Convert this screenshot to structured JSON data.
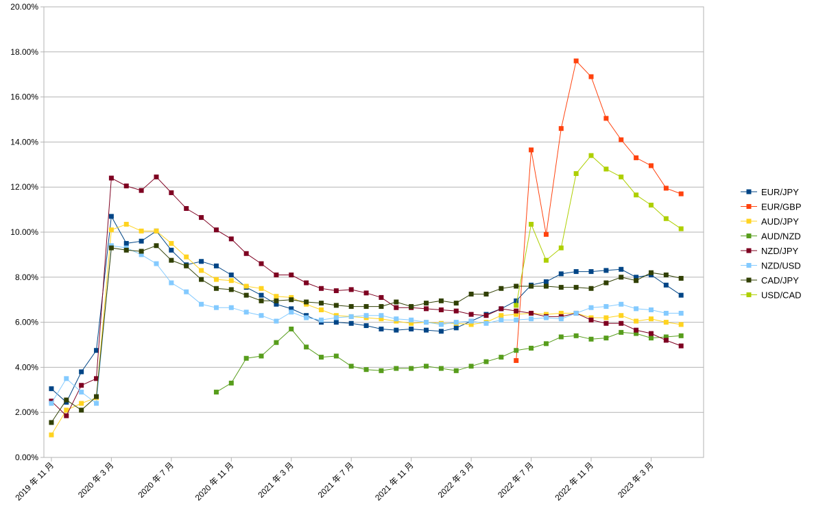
{
  "chart_data": {
    "type": "line",
    "title": "",
    "xlabel": "",
    "ylabel": "",
    "ylim": [
      0,
      20
    ],
    "y_ticks": [
      "0.00%",
      "2.00%",
      "4.00%",
      "6.00%",
      "8.00%",
      "10.00%",
      "12.00%",
      "14.00%",
      "16.00%",
      "18.00%",
      "20.00%"
    ],
    "x_ticks": [
      {
        "index": 0,
        "label": "2019 年 11 月"
      },
      {
        "index": 4,
        "label": "2020 年 3 月"
      },
      {
        "index": 8,
        "label": "2020 年 7 月"
      },
      {
        "index": 12,
        "label": "2020 年 11 月"
      },
      {
        "index": 16,
        "label": "2021 年 3 月"
      },
      {
        "index": 20,
        "label": "2021 年 7 月"
      },
      {
        "index": 24,
        "label": "2021 年 11 月"
      },
      {
        "index": 28,
        "label": "2022 年 3 月"
      },
      {
        "index": 32,
        "label": "2022 年 7 月"
      },
      {
        "index": 36,
        "label": "2022 年 11 月"
      },
      {
        "index": 40,
        "label": "2023 年 3 月"
      }
    ],
    "grid": true,
    "legend_position": "right",
    "x": [
      "2019-11",
      "2019-12",
      "2020-01",
      "2020-02",
      "2020-03",
      "2020-04",
      "2020-05",
      "2020-06",
      "2020-07",
      "2020-08",
      "2020-09",
      "2020-10",
      "2020-11",
      "2020-12",
      "2021-01",
      "2021-02",
      "2021-03",
      "2021-04",
      "2021-05",
      "2021-06",
      "2021-07",
      "2021-08",
      "2021-09",
      "2021-10",
      "2021-11",
      "2021-12",
      "2022-01",
      "2022-02",
      "2022-03",
      "2022-04",
      "2022-05",
      "2022-06",
      "2022-07",
      "2022-08",
      "2022-09",
      "2022-10",
      "2022-11",
      "2022-12",
      "2023-01",
      "2023-02",
      "2023-03",
      "2023-04",
      "2023-05",
      "2023-06"
    ],
    "series": [
      {
        "name": "EUR/JPY",
        "color": "#004586",
        "values": [
          3.05,
          2.45,
          3.8,
          4.75,
          10.7,
          9.5,
          9.6,
          10.05,
          9.2,
          8.55,
          8.7,
          8.5,
          8.1,
          7.55,
          7.2,
          6.8,
          6.6,
          6.3,
          6.0,
          6.0,
          5.95,
          5.85,
          5.7,
          5.65,
          5.7,
          5.65,
          5.6,
          5.75,
          6.05,
          6.35,
          6.6,
          6.95,
          7.65,
          7.8,
          8.15,
          8.25,
          8.25,
          8.3,
          8.35,
          8.0,
          8.1,
          7.65,
          7.2,
          null
        ]
      },
      {
        "name": "EUR/GBP",
        "color": "#ff420e",
        "values": [
          null,
          null,
          null,
          null,
          null,
          null,
          null,
          null,
          null,
          null,
          null,
          null,
          null,
          null,
          null,
          null,
          null,
          null,
          null,
          null,
          null,
          null,
          null,
          null,
          null,
          null,
          null,
          null,
          null,
          null,
          null,
          4.3,
          13.65,
          9.9,
          14.6,
          17.6,
          16.9,
          15.05,
          14.1,
          13.3,
          12.95,
          11.95,
          11.7,
          null
        ]
      },
      {
        "name": "AUD/JPY",
        "color": "#ffd320",
        "values": [
          1.0,
          2.1,
          2.4,
          2.65,
          10.1,
          10.35,
          10.05,
          10.05,
          9.5,
          8.9,
          8.3,
          7.9,
          7.85,
          7.6,
          7.5,
          7.15,
          7.1,
          6.8,
          6.55,
          6.3,
          6.25,
          6.2,
          6.15,
          6.05,
          5.95,
          6.0,
          5.95,
          5.95,
          5.9,
          6.0,
          6.3,
          6.35,
          6.4,
          6.35,
          6.4,
          6.4,
          6.2,
          6.2,
          6.3,
          6.05,
          6.15,
          6.0,
          5.9,
          null
        ]
      },
      {
        "name": "AUD/NZD",
        "color": "#579d1c",
        "values": [
          null,
          null,
          null,
          null,
          null,
          null,
          null,
          null,
          null,
          null,
          null,
          2.9,
          3.3,
          4.4,
          4.5,
          5.1,
          5.7,
          4.9,
          4.45,
          4.5,
          4.05,
          3.9,
          3.85,
          3.95,
          3.95,
          4.05,
          3.95,
          3.85,
          4.05,
          4.25,
          4.45,
          4.75,
          4.85,
          5.05,
          5.35,
          5.4,
          5.25,
          5.3,
          5.55,
          5.5,
          5.3,
          5.35,
          5.4,
          null
        ]
      },
      {
        "name": "NZD/JPY",
        "color": "#7e0021",
        "values": [
          2.5,
          1.85,
          3.2,
          3.5,
          12.4,
          12.05,
          11.85,
          12.45,
          11.75,
          11.05,
          10.65,
          10.1,
          9.7,
          9.05,
          8.6,
          8.1,
          8.1,
          7.75,
          7.5,
          7.4,
          7.45,
          7.3,
          7.1,
          6.65,
          6.65,
          6.6,
          6.55,
          6.5,
          6.35,
          6.3,
          6.6,
          6.5,
          6.4,
          6.25,
          6.25,
          6.4,
          6.1,
          5.95,
          5.95,
          5.65,
          5.5,
          5.2,
          4.95,
          null
        ]
      },
      {
        "name": "NZD/USD",
        "color": "#83caff",
        "values": [
          2.4,
          3.5,
          2.9,
          2.4,
          9.4,
          9.3,
          9.0,
          8.6,
          7.75,
          7.35,
          6.8,
          6.65,
          6.65,
          6.45,
          6.3,
          6.05,
          6.45,
          6.2,
          6.1,
          6.2,
          6.25,
          6.3,
          6.3,
          6.15,
          6.1,
          6.0,
          5.9,
          6.0,
          6.05,
          5.95,
          6.1,
          6.1,
          6.15,
          6.2,
          6.15,
          6.4,
          6.65,
          6.7,
          6.8,
          6.6,
          6.55,
          6.4,
          6.4,
          null
        ]
      },
      {
        "name": "CAD/JPY",
        "color": "#314004",
        "values": [
          1.55,
          2.55,
          2.1,
          2.7,
          9.3,
          9.2,
          9.15,
          9.4,
          8.75,
          8.5,
          7.9,
          7.5,
          7.45,
          7.2,
          6.95,
          6.95,
          7.0,
          6.9,
          6.85,
          6.75,
          6.7,
          6.7,
          6.7,
          6.9,
          6.7,
          6.85,
          6.95,
          6.85,
          7.25,
          7.25,
          7.5,
          7.6,
          7.6,
          7.6,
          7.55,
          7.55,
          7.5,
          7.75,
          8.0,
          7.85,
          8.2,
          8.1,
          7.95,
          null
        ]
      },
      {
        "name": "USD/CAD",
        "color": "#aecf00",
        "values": [
          null,
          null,
          null,
          null,
          null,
          null,
          null,
          null,
          null,
          null,
          null,
          null,
          null,
          null,
          null,
          null,
          null,
          null,
          null,
          null,
          null,
          null,
          null,
          null,
          null,
          null,
          null,
          null,
          null,
          null,
          null,
          6.75,
          10.35,
          8.75,
          9.3,
          12.6,
          13.4,
          12.8,
          12.45,
          11.65,
          11.2,
          10.6,
          10.15,
          null
        ]
      }
    ]
  }
}
